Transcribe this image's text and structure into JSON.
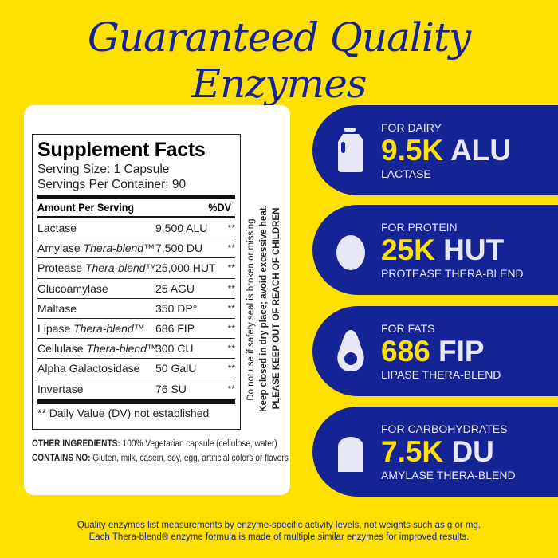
{
  "title": "Guaranteed Quality Enzymes",
  "facts": {
    "heading": "Supplement Facts",
    "serving_size": "Serving Size: 1 Capsule",
    "servings": "Servings Per Container: 90",
    "col_amount": "Amount Per Serving",
    "col_dv": "%DV",
    "rows": [
      {
        "name": "Lactase",
        "blend": "",
        "amount": "9,500 ALU",
        "dv": "**"
      },
      {
        "name": "Amylase ",
        "blend": "Thera-blend™",
        "amount": "7,500 DU",
        "dv": "**"
      },
      {
        "name": "Protease ",
        "blend": "Thera-blend™",
        "amount": "25,000 HUT",
        "dv": "**"
      },
      {
        "name": "Glucoamylase",
        "blend": "",
        "amount": "25 AGU",
        "dv": "**"
      },
      {
        "name": "Maltase",
        "blend": "",
        "amount": "350 DP°",
        "dv": "**"
      },
      {
        "name": "Lipase ",
        "blend": "Thera-blend™",
        "amount": "686 FIP",
        "dv": "**"
      },
      {
        "name": "Cellulase ",
        "blend": "Thera-blend™",
        "amount": "300 CU",
        "dv": "**"
      },
      {
        "name": "Alpha Galactosidase",
        "blend": "",
        "amount": "50 GalU",
        "dv": "**"
      },
      {
        "name": "Invertase",
        "blend": "",
        "amount": "76 SU",
        "dv": "**"
      }
    ],
    "footnote": "** Daily Value (DV) not established"
  },
  "ingredients": {
    "other_label": "OTHER INGREDIENTS:",
    "other": " 100% Vegetarian capsule (cellulose, water)",
    "contains_label": "CONTAINS NO:",
    "contains": " Gluten, milk, casein, soy, egg, artificial colors or flavors"
  },
  "warning": {
    "line1": "Do not use if safety seal is broken or missing.",
    "line2": "Keep closed in dry place; avoid excessive heat.",
    "line3": "PLEASE KEEP OUT OF REACH OF CHILDREN"
  },
  "banners": [
    {
      "category": "FOR DAIRY",
      "value": "9.5K",
      "unit": "ALU",
      "enzyme": "LACTASE",
      "icon": "milk-jug-icon"
    },
    {
      "category": "FOR PROTEIN",
      "value": "25K",
      "unit": "HUT",
      "enzyme": "PROTEASE THERA-BLEND",
      "icon": "egg-icon"
    },
    {
      "category": "FOR FATS",
      "value": "686",
      "unit": "FIP",
      "enzyme": "LIPASE THERA-BLEND",
      "icon": "avocado-icon"
    },
    {
      "category": "FOR CARBOHYDRATES",
      "value": "7.5K",
      "unit": "DU",
      "enzyme": "AMYLASE THERA-BLEND",
      "icon": "bread-icon"
    }
  ],
  "note": {
    "line1": "Quality enzymes list measurements by enzyme-specific activity levels, not weights such as g or mg.",
    "line2": "Each Thera-blend® enzyme formula is made of multiple similar enzymes for improved results."
  },
  "colors": {
    "background": "#FFE100",
    "navy": "#142494",
    "highlight": "#FFE100"
  }
}
